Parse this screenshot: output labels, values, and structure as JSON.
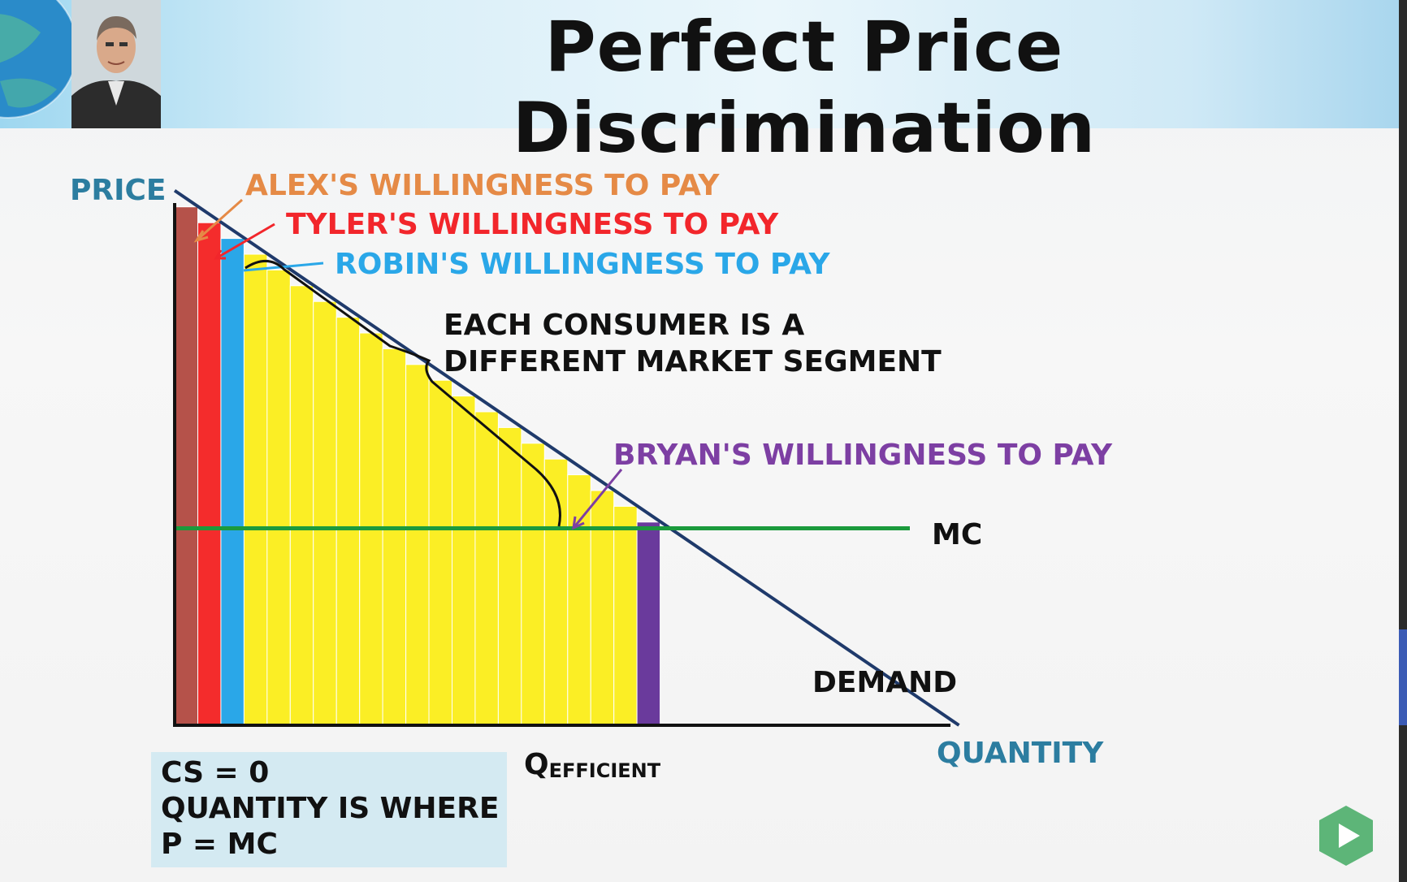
{
  "slide": {
    "title": "Perfect Price Discrimination"
  },
  "chart_data": {
    "type": "bar",
    "title": "",
    "xlabel": "QUANTITY",
    "ylabel": "PRICE",
    "x_tick_label_main": "Q",
    "x_tick_label_sub": "EFFICIENT",
    "demand_label": "DEMAND",
    "mc_label": "MC",
    "mc_value": 35,
    "demand": {
      "intercept": 95,
      "slope": -1,
      "label": "DEMAND"
    },
    "ylim": [
      0,
      100
    ],
    "xlim": [
      0,
      92
    ],
    "bar_width": 2.8,
    "bars": [
      {
        "value": 92.1,
        "color": "#b5524a"
      },
      {
        "value": 89.3,
        "color": "#f42c2c"
      },
      {
        "value": 86.5,
        "color": "#2aa7e8"
      },
      {
        "value": 83.7,
        "color": "#fbee25"
      },
      {
        "value": 80.9,
        "color": "#fbee25"
      },
      {
        "value": 78.1,
        "color": "#fbee25"
      },
      {
        "value": 75.3,
        "color": "#fbee25"
      },
      {
        "value": 72.5,
        "color": "#fbee25"
      },
      {
        "value": 69.7,
        "color": "#fbee25"
      },
      {
        "value": 66.9,
        "color": "#fbee25"
      },
      {
        "value": 64.1,
        "color": "#fbee25"
      },
      {
        "value": 61.3,
        "color": "#fbee25"
      },
      {
        "value": 58.5,
        "color": "#fbee25"
      },
      {
        "value": 55.7,
        "color": "#fbee25"
      },
      {
        "value": 52.9,
        "color": "#fbee25"
      },
      {
        "value": 50.1,
        "color": "#fbee25"
      },
      {
        "value": 47.3,
        "color": "#fbee25"
      },
      {
        "value": 44.5,
        "color": "#fbee25"
      },
      {
        "value": 41.7,
        "color": "#fbee25"
      },
      {
        "value": 38.9,
        "color": "#fbee25"
      },
      {
        "value": 36.1,
        "color": "#6a3a9c"
      }
    ],
    "annotations": {
      "alex": {
        "text": "ALEX'S WILLINGNESS TO PAY",
        "color": "#e58a46"
      },
      "tyler": {
        "text": "TYLER'S WILLINGNESS TO PAY",
        "color": "#f2262b"
      },
      "robin": {
        "text": "ROBIN'S WILLINGNESS TO PAY",
        "color": "#2aa7e8"
      },
      "bryan": {
        "text": "BRYAN'S WILLINGNESS TO PAY",
        "color": "#7d3fa3"
      },
      "segment_line1": "EACH CONSUMER IS A",
      "segment_line2": "DIFFERENT MARKET SEGMENT"
    },
    "colors": {
      "axis_label": "#2c7da0",
      "demand": "#1f3a6b",
      "mc": "#1b9a3c",
      "axis": "#111111"
    }
  },
  "notes_box": {
    "line1": "CS = 0",
    "line2": "QUANTITY IS WHERE",
    "line3": "P = MC"
  },
  "player": {
    "play_icon": "play-icon",
    "accent": "#4cae6a"
  }
}
